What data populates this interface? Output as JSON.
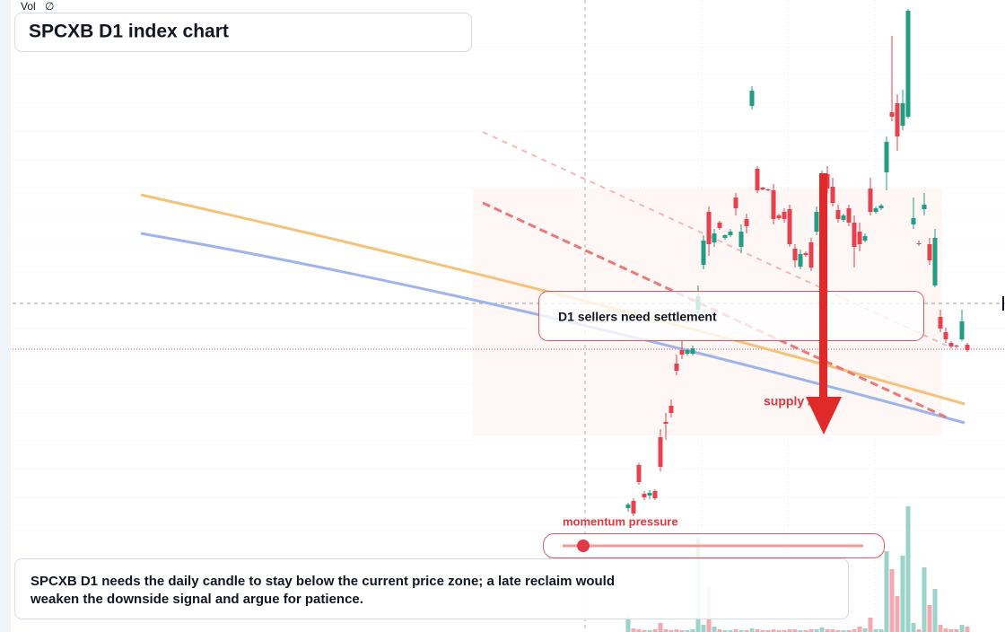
{
  "header": {
    "vol_label": "Vol",
    "vol_icon": "∅",
    "title": "SPCXB D1 index chart"
  },
  "chart_data": {
    "type": "candlestick",
    "categories": [
      null,
      null,
      null,
      null,
      null,
      null,
      null,
      null,
      null,
      null,
      null,
      null,
      null,
      null,
      null,
      null,
      null,
      null,
      null,
      null,
      null,
      null,
      null,
      null,
      null,
      null,
      null,
      null,
      null,
      null,
      null,
      null,
      null,
      null,
      null,
      null,
      null,
      null,
      null,
      null,
      null,
      null,
      null,
      null,
      null,
      null,
      null,
      null,
      null,
      null,
      null,
      null,
      null,
      null,
      null,
      null,
      null,
      null,
      null,
      null,
      null,
      null,
      null,
      null
    ],
    "open": [
      138,
      146,
      186,
      154,
      152,
      157,
      217,
      234,
      252,
      299,
      314,
      310,
      310,
      359,
      409,
      468,
      434,
      456,
      439,
      442,
      484,
      429,
      460,
      586,
      516,
      495,
      493,
      492,
      464,
      468,
      471,
      427,
      407,
      422,
      434,
      446,
      468,
      510,
      496,
      470,
      459,
      472,
      456,
      446,
      436,
      494,
      468,
      472,
      512,
      579,
      589,
      564,
      574,
      454,
      433,
      471,
      432,
      386,
      351,
      334,
      322,
      319,
      326,
      320
    ],
    "high": [
      144,
      149,
      188,
      157,
      158,
      159,
      226,
      244,
      259,
      309,
      324,
      316,
      319,
      386,
      442,
      474,
      449,
      458,
      443,
      449,
      489,
      454,
      466,
      608,
      519,
      496,
      494,
      499,
      466,
      472,
      476,
      432,
      426,
      424,
      439,
      474,
      514,
      519,
      506,
      476,
      466,
      476,
      464,
      456,
      444,
      506,
      474,
      477,
      552,
      664,
      599,
      604,
      694,
      484,
      436,
      489,
      439,
      449,
      359,
      339,
      324,
      320,
      359,
      322
    ],
    "low": [
      134,
      129,
      164,
      147,
      148,
      147,
      179,
      214,
      239,
      286,
      304,
      308,
      308,
      354,
      404,
      419,
      429,
      448,
      437,
      440,
      464,
      422,
      444,
      582,
      489,
      492,
      491,
      454,
      459,
      456,
      429,
      406,
      404,
      418,
      402,
      442,
      464,
      489,
      474,
      456,
      457,
      452,
      406,
      424,
      434,
      464,
      466,
      470,
      492,
      569,
      536,
      559,
      572,
      449,
      430,
      464,
      409,
      384,
      334,
      322,
      316,
      316,
      324,
      312
    ],
    "close": [
      142,
      132,
      167,
      150,
      155,
      149,
      184,
      232,
      244,
      291,
      309,
      314,
      316,
      374,
      436,
      432,
      444,
      450,
      442,
      446,
      472,
      446,
      452,
      603,
      492,
      493,
      492,
      460,
      461,
      460,
      432,
      414,
      421,
      420,
      406,
      468,
      509,
      494,
      478,
      460,
      464,
      456,
      429,
      432,
      441,
      468,
      472,
      475,
      546,
      574,
      552,
      589,
      692,
      461,
      432,
      476,
      414,
      439,
      338,
      326,
      318,
      318,
      346,
      314
    ],
    "volume": [
      20,
      4,
      3,
      2,
      2,
      3,
      10,
      3,
      2,
      3,
      2,
      2,
      3,
      105,
      8,
      50,
      6,
      3,
      2,
      2,
      3,
      2,
      2,
      4,
      3,
      2,
      2,
      3,
      2,
      2,
      3,
      3,
      2,
      2,
      3,
      3,
      5,
      3,
      3,
      2,
      2,
      2,
      3,
      6,
      4,
      16,
      3,
      3,
      90,
      70,
      40,
      85,
      140,
      10,
      3,
      72,
      30,
      48,
      8,
      4,
      3,
      3,
      8,
      6
    ],
    "up_color": "#1f9e83",
    "down_color": "#e5414f",
    "ylim": [
      0,
      704
    ],
    "y2lim": [
      0,
      704
    ]
  },
  "annotations": {
    "callout": "D1 sellers need settlement",
    "zone_label": "supply zone",
    "slider_label": "momentum pressure",
    "note": "SPCXB D1 needs the daily candle to stay below the current price zone; a late reclaim would weaken the downside signal and argue for patience."
  }
}
